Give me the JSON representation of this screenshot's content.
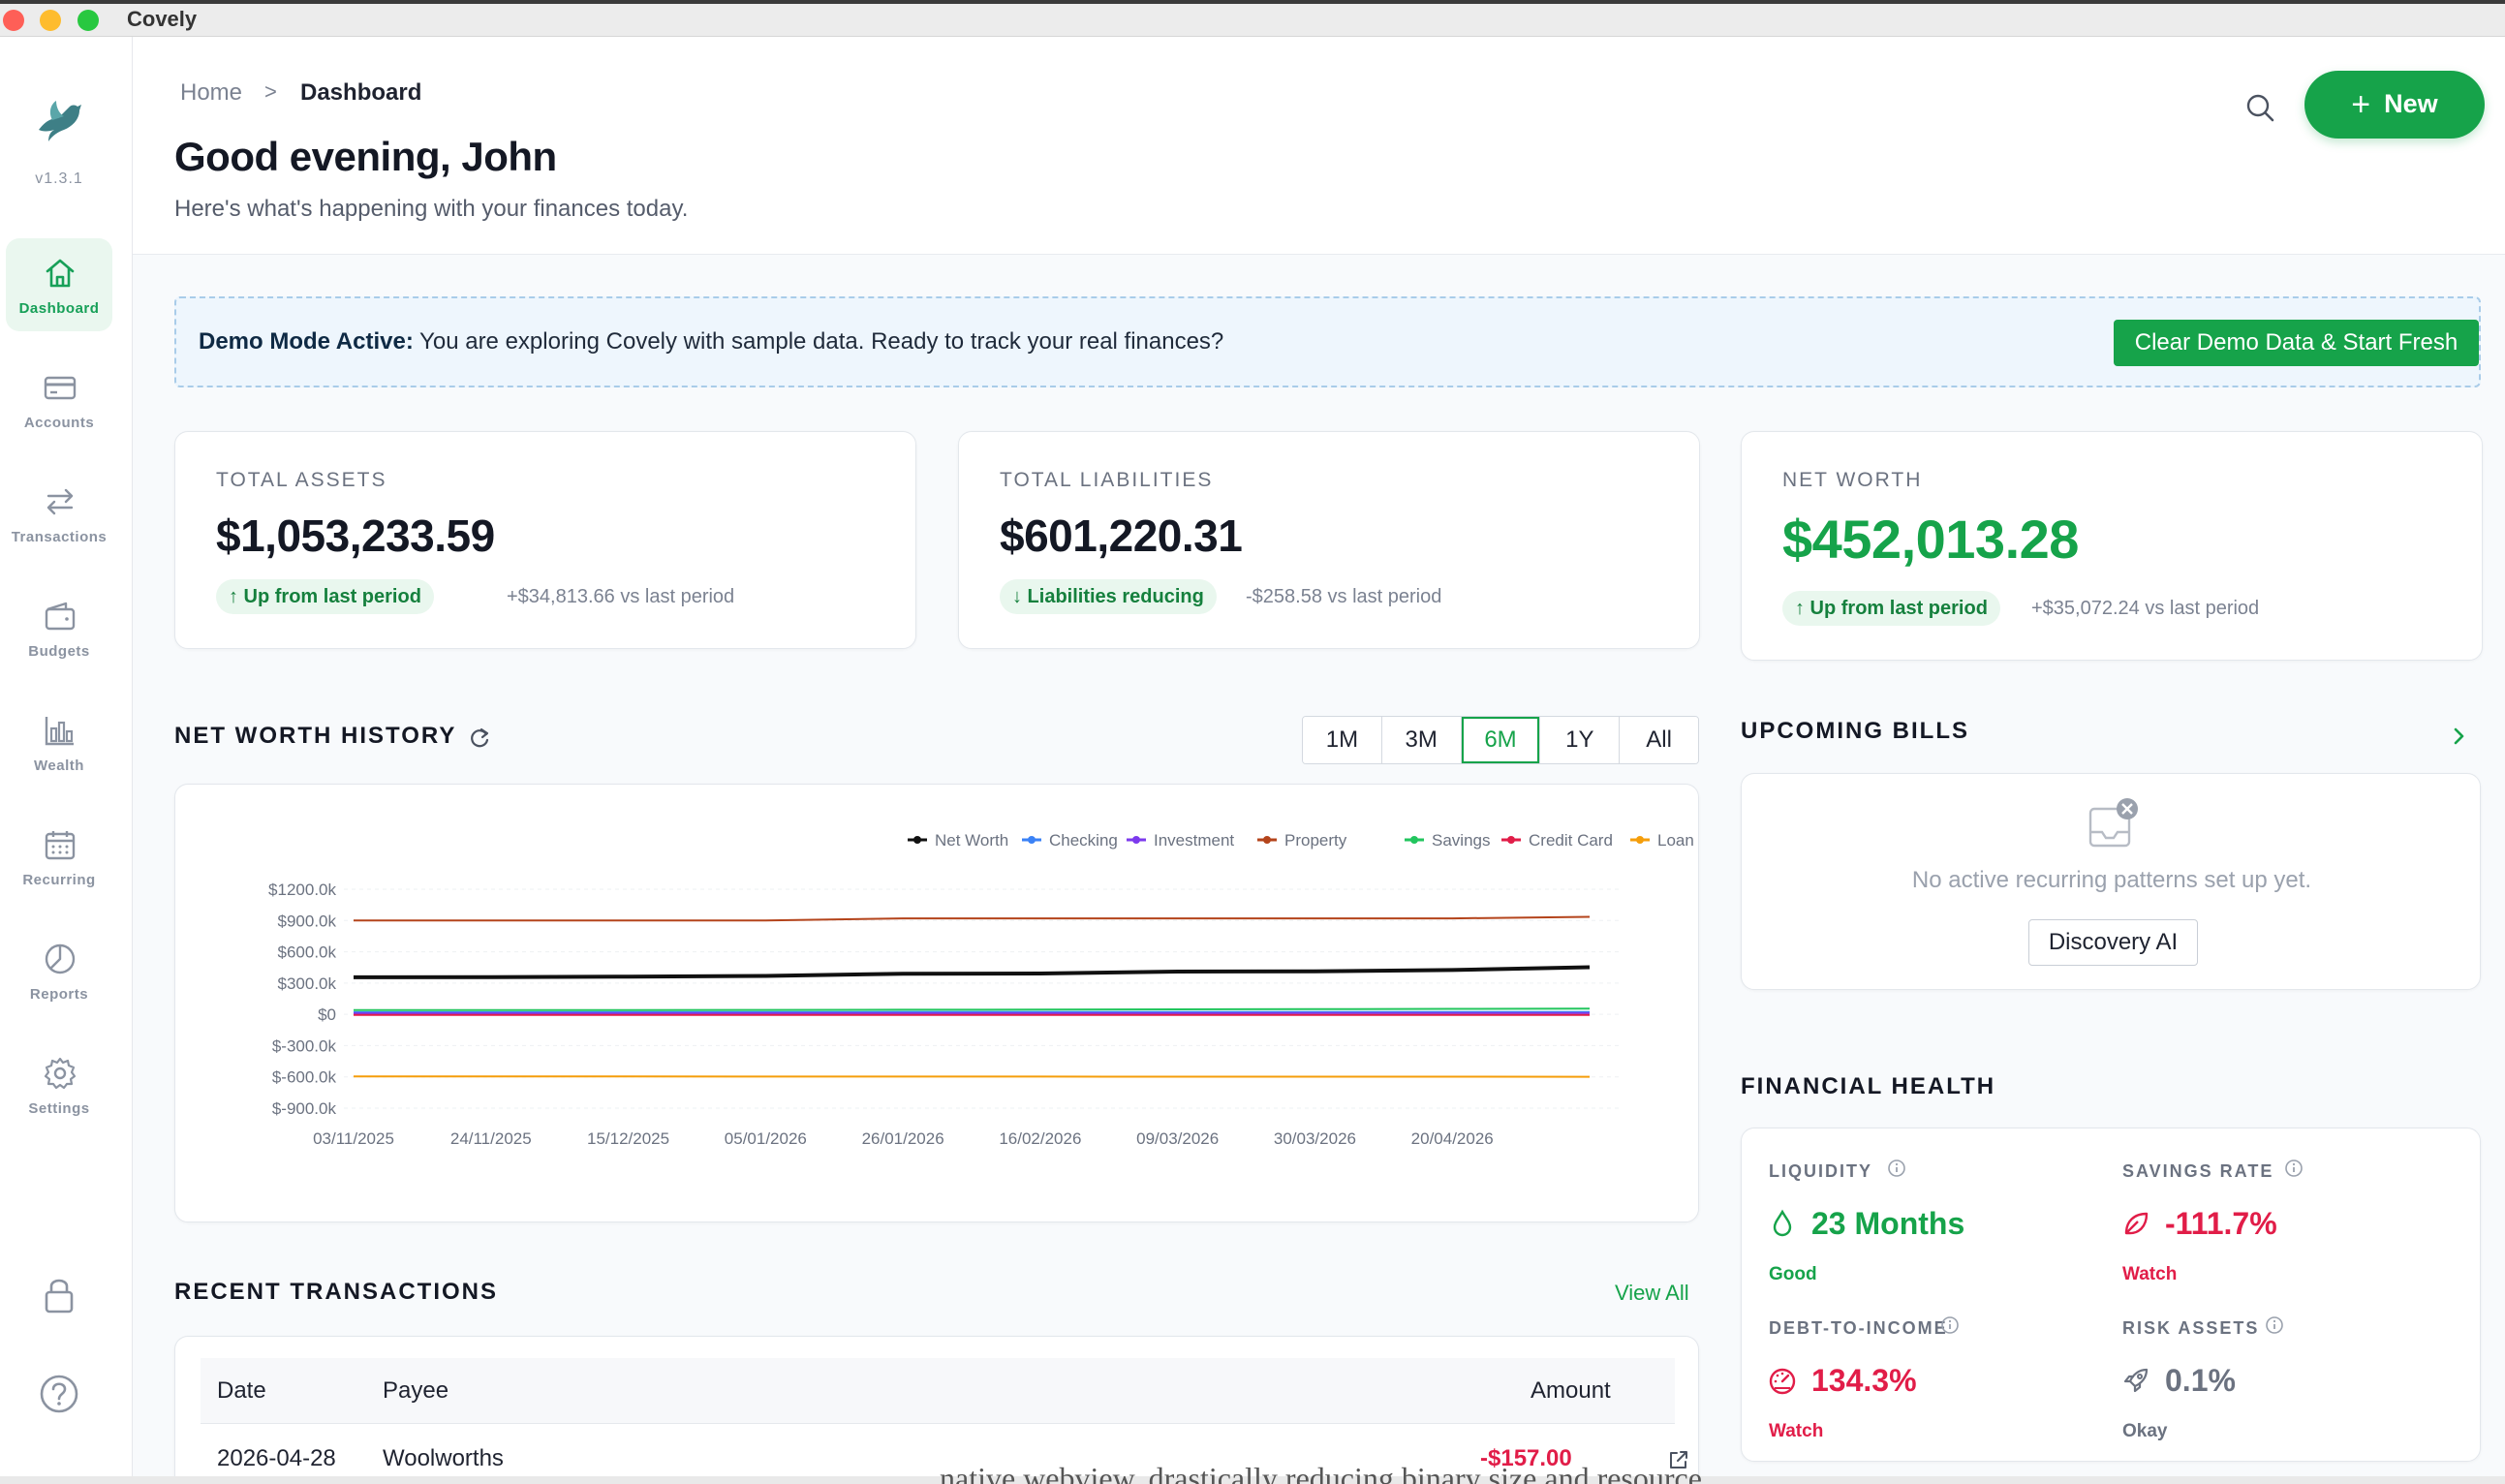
{
  "window": {
    "title": "Covely"
  },
  "sidebar": {
    "version": "v1.3.1",
    "items": [
      {
        "label": "Dashboard",
        "icon": "home-icon"
      },
      {
        "label": "Accounts",
        "icon": "credit-card-icon"
      },
      {
        "label": "Transactions",
        "icon": "arrows-swap-icon"
      },
      {
        "label": "Budgets",
        "icon": "wallet-icon"
      },
      {
        "label": "Wealth",
        "icon": "bar-chart-icon"
      },
      {
        "label": "Recurring",
        "icon": "calendar-icon"
      },
      {
        "label": "Reports",
        "icon": "pie-chart-icon"
      },
      {
        "label": "Settings",
        "icon": "gear-icon"
      }
    ]
  },
  "header": {
    "breadcrumb": {
      "home": "Home",
      "separator": ">",
      "current": "Dashboard"
    },
    "greeting": "Good evening, John",
    "subtitle": "Here's what's happening with your finances today.",
    "new_label": "New"
  },
  "demo": {
    "title": "Demo Mode Active:",
    "message": "You are exploring Covely with sample data. Ready to track your real finances?",
    "button": "Clear Demo Data & Start Fresh"
  },
  "stats": {
    "assets": {
      "label": "TOTAL ASSETS",
      "value": "$1,053,233.59",
      "pill": "↑ Up from last period",
      "delta": "+$34,813.66 vs last period"
    },
    "liabilities": {
      "label": "TOTAL LIABILITIES",
      "value": "$601,220.31",
      "pill": "↓ Liabilities reducing",
      "delta": "-$258.58 vs last period"
    },
    "networth": {
      "label": "NET WORTH",
      "value": "$452,013.28",
      "pill": "↑ Up from last period",
      "delta": "+$35,072.24 vs last period"
    }
  },
  "history": {
    "title": "NET WORTH HISTORY",
    "ranges": [
      "1M",
      "3M",
      "6M",
      "1Y",
      "All"
    ],
    "selected_range": "6M"
  },
  "chart_data": {
    "type": "line",
    "title": "",
    "xlabel": "",
    "ylabel": "",
    "legend_position": "top-right",
    "grid": true,
    "y_ticks": [
      "$1200.0k",
      "$900.0k",
      "$600.0k",
      "$300.0k",
      "$0",
      "$-300.0k",
      "$-600.0k",
      "$-900.0k"
    ],
    "ylim": [
      -900,
      1200
    ],
    "x_tick_labels": [
      "03/11/2025",
      "24/11/2025",
      "15/12/2025",
      "05/01/2026",
      "26/01/2026",
      "16/02/2026",
      "09/03/2026",
      "30/03/2026",
      "20/04/2026"
    ],
    "x": [
      "03/11/2025",
      "24/11/2025",
      "15/12/2025",
      "05/01/2026",
      "26/01/2026",
      "16/02/2026",
      "09/03/2026",
      "30/03/2026",
      "20/04/2026",
      "28/04/2026"
    ],
    "series": [
      {
        "name": "Net Worth",
        "color": "#111111",
        "width": 4,
        "values": [
          355,
          357,
          362,
          368,
          390,
          392,
          410,
          413,
          425,
          452
        ]
      },
      {
        "name": "Checking",
        "color": "#3b82f6",
        "width": 2,
        "values": [
          20,
          20,
          21,
          21,
          22,
          22,
          22,
          23,
          23,
          23
        ]
      },
      {
        "name": "Investment",
        "color": "#7c3aed",
        "width": 2,
        "values": [
          10,
          10,
          10,
          11,
          11,
          11,
          11,
          12,
          12,
          12
        ]
      },
      {
        "name": "Property",
        "color": "#b4441b",
        "width": 2,
        "values": [
          900,
          900,
          900,
          900,
          920,
          920,
          920,
          920,
          920,
          935
        ]
      },
      {
        "name": "Savings",
        "color": "#22c55e",
        "width": 2,
        "values": [
          40,
          40,
          41,
          42,
          44,
          45,
          48,
          50,
          52,
          54
        ]
      },
      {
        "name": "Credit Card",
        "color": "#e11d48",
        "width": 2,
        "values": [
          -5,
          -5,
          -5,
          -5,
          -5,
          -5,
          -6,
          -6,
          -6,
          -6
        ]
      },
      {
        "name": "Loan",
        "color": "#f59e0b",
        "width": 2,
        "values": [
          -595,
          -596,
          -596,
          -597,
          -597,
          -597,
          -598,
          -598,
          -598,
          -599
        ]
      }
    ]
  },
  "bills": {
    "title": "UPCOMING BILLS",
    "empty_message": "No active recurring patterns set up yet.",
    "discovery_button": "Discovery AI"
  },
  "health": {
    "title": "FINANCIAL HEALTH",
    "metrics": [
      {
        "label": "LIQUIDITY",
        "value": "23 Months",
        "status": "Good",
        "tone": "#16a34a"
      },
      {
        "label": "SAVINGS RATE",
        "value": "-111.7%",
        "status": "Watch",
        "tone": "#e11d48"
      },
      {
        "label": "DEBT-TO-INCOME",
        "value": "134.3%",
        "status": "Watch",
        "tone": "#e11d48"
      },
      {
        "label": "RISK ASSETS",
        "value": "0.1%",
        "status": "Okay",
        "tone": "#6b7280"
      }
    ]
  },
  "transactions": {
    "title": "RECENT TRANSACTIONS",
    "view_all": "View All",
    "columns": {
      "date": "Date",
      "payee": "Payee",
      "amount": "Amount"
    },
    "rows": [
      {
        "date": "2026-04-28",
        "payee": "Woolworths",
        "amount": "-$157.00"
      }
    ]
  },
  "background_text": "native webview, drastically reducing binary size and resource"
}
